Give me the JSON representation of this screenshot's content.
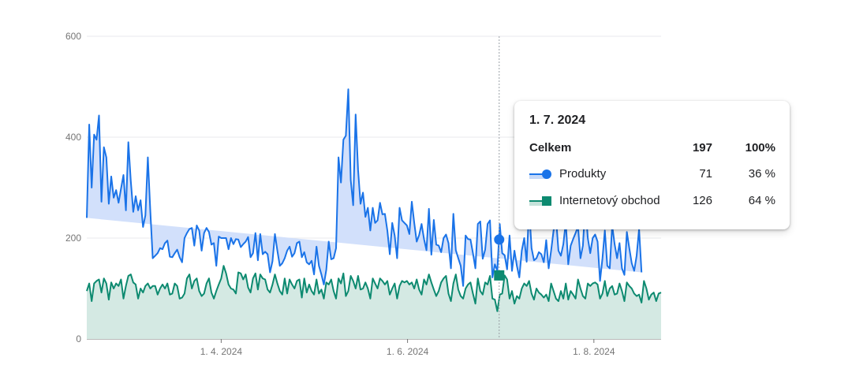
{
  "chart_data": {
    "type": "area",
    "x_start": "2024-02-17",
    "x_end": "2024-08-23",
    "x_ticks": [
      "1. 4. 2024",
      "1. 6. 2024",
      "1. 8. 2024"
    ],
    "x_tick_dates": [
      "2024-04-01",
      "2024-06-01",
      "2024-08-01"
    ],
    "y_ticks": [
      "0",
      "200",
      "400",
      "600"
    ],
    "ylim": [
      0,
      600
    ],
    "grid": true,
    "stacked": true,
    "highlight_date": "2024-07-01",
    "series": [
      {
        "name": "Internetový obchod",
        "color": "#0d8a70",
        "fill": "#d4e9e3",
        "marker": "square",
        "values": [
          95,
          110,
          75,
          110,
          115,
          118,
          92,
          120,
          110,
          78,
          112,
          100,
          110,
          105,
          118,
          80,
          105,
          125,
          128,
          112,
          108,
          80,
          100,
          92,
          105,
          110,
          100,
          105,
          105,
          88,
          100,
          108,
          100,
          110,
          88,
          90,
          110,
          105,
          80,
          82,
          90,
          120,
          128,
          100,
          115,
          120,
          95,
          85,
          90,
          110,
          120,
          92,
          80,
          95,
          108,
          120,
          145,
          130,
          108,
          100,
          98,
          90,
          132,
          130,
          118,
          128,
          102,
          92,
          120,
          130,
          98,
          128,
          120,
          118,
          98,
          92,
          108,
          128,
          110,
          95,
          88,
          120,
          90,
          118,
          108,
          100,
          115,
          118,
          82,
          120,
          92,
          108,
          95,
          88,
          118,
          90,
          98,
          80,
          112,
          108,
          118,
          95,
          80,
          120,
          110,
          130,
          85,
          95,
          125,
          115,
          100,
          125,
          98,
          100,
          112,
          100,
          80,
          120,
          110,
          100,
          120,
          115,
          108,
          115,
          88,
          100,
          110,
          80,
          105,
          115,
          112,
          115,
          108,
          112,
          100,
          118,
          98,
          88,
          118,
          108,
          128,
          112,
          98,
          85,
          95,
          112,
          120,
          125,
          90,
          75,
          110,
          128,
          98,
          85,
          80,
          100,
          108,
          112,
          90,
          70,
          120,
          95,
          88,
          112,
          108,
          125,
          80,
          78,
          55,
          88,
          90,
          126,
          118,
          80,
          95,
          70,
          85,
          80,
          100,
          110,
          105,
          115,
          90,
          78,
          100,
          92,
          88,
          82,
          88,
          75,
          110,
          95,
          80,
          75,
          95,
          80,
          110,
          78,
          95,
          88,
          80,
          118,
          100,
          85,
          80,
          110,
          105,
          110,
          112,
          108,
          80,
          90,
          115,
          85,
          100,
          105,
          88,
          90,
          110,
          95,
          75,
          112,
          105,
          100,
          90,
          85,
          88,
          72,
          115,
          100,
          78,
          88,
          92,
          75,
          90,
          92
        ]
      },
      {
        "name": "Produkty",
        "color": "#1a73e8",
        "fill": "#d2e0fb",
        "marker": "circle",
        "values": [
          145,
          315,
          225,
          295,
          280,
          325,
          180,
          260,
          250,
          190,
          210,
          180,
          185,
          165,
          180,
          245,
          150,
          265,
          185,
          140,
          175,
          175,
          175,
          130,
          140,
          250,
          155,
          55,
          60,
          82,
          80,
          70,
          90,
          85,
          75,
          72,
          60,
          72,
          82,
          70,
          110,
          90,
          90,
          120,
          70,
          105,
          120,
          90,
          120,
          110,
          92,
          95,
          110,
          50,
          95,
          80,
          55,
          70,
          70,
          100,
          90,
          108,
          65,
          52,
          70,
          65,
          100,
          70,
          50,
          80,
          58,
          80,
          48,
          55,
          70,
          40,
          46,
          80,
          65,
          50,
          62,
          40,
          85,
          65,
          55,
          70,
          75,
          75,
          80,
          52,
          60,
          40,
          60,
          40,
          65,
          55,
          30,
          28,
          25,
          85,
          40,
          65,
          100,
          240,
          200,
          265,
          318,
          400,
          190,
          150,
          345,
          210,
          170,
          190,
          130,
          160,
          135,
          140,
          120,
          135,
          150,
          132,
          140,
          100,
          80,
          130,
          95,
          80,
          155,
          120,
          118,
          110,
          100,
          160,
          130,
          75,
          108,
          140,
          80,
          68,
          130,
          55,
          138,
          102,
          90,
          60,
          80,
          82,
          100,
          65,
          138,
          48,
          62,
          60,
          25,
          105,
          90,
          85,
          80,
          70,
          108,
          138,
          71,
          65,
          120,
          110,
          42,
          70,
          80,
          140,
          80,
          40,
          20,
          125,
          40,
          105,
          60,
          42,
          75,
          90,
          48,
          145,
          90,
          78,
          60,
          80,
          80,
          70,
          108,
          65,
          65,
          120,
          160,
          100,
          70,
          108,
          122,
          70,
          90,
          110,
          130,
          105,
          60,
          100,
          190,
          90,
          65,
          90,
          95,
          85,
          35,
          70,
          100,
          60,
          40,
          120,
          100,
          70,
          80,
          45,
          52,
          100,
          75,
          50,
          45,
          80,
          130,
          60
        ]
      }
    ],
    "totals_label": "Celkem"
  },
  "tooltip": {
    "date": "1. 7. 2024",
    "total_label": "Celkem",
    "total_value": "197",
    "total_pct": "100%",
    "rows": [
      {
        "label": "Produkty",
        "value": "71",
        "pct": "36 %"
      },
      {
        "label": "Internetový obchod",
        "value": "126",
        "pct": "64 %"
      }
    ]
  }
}
